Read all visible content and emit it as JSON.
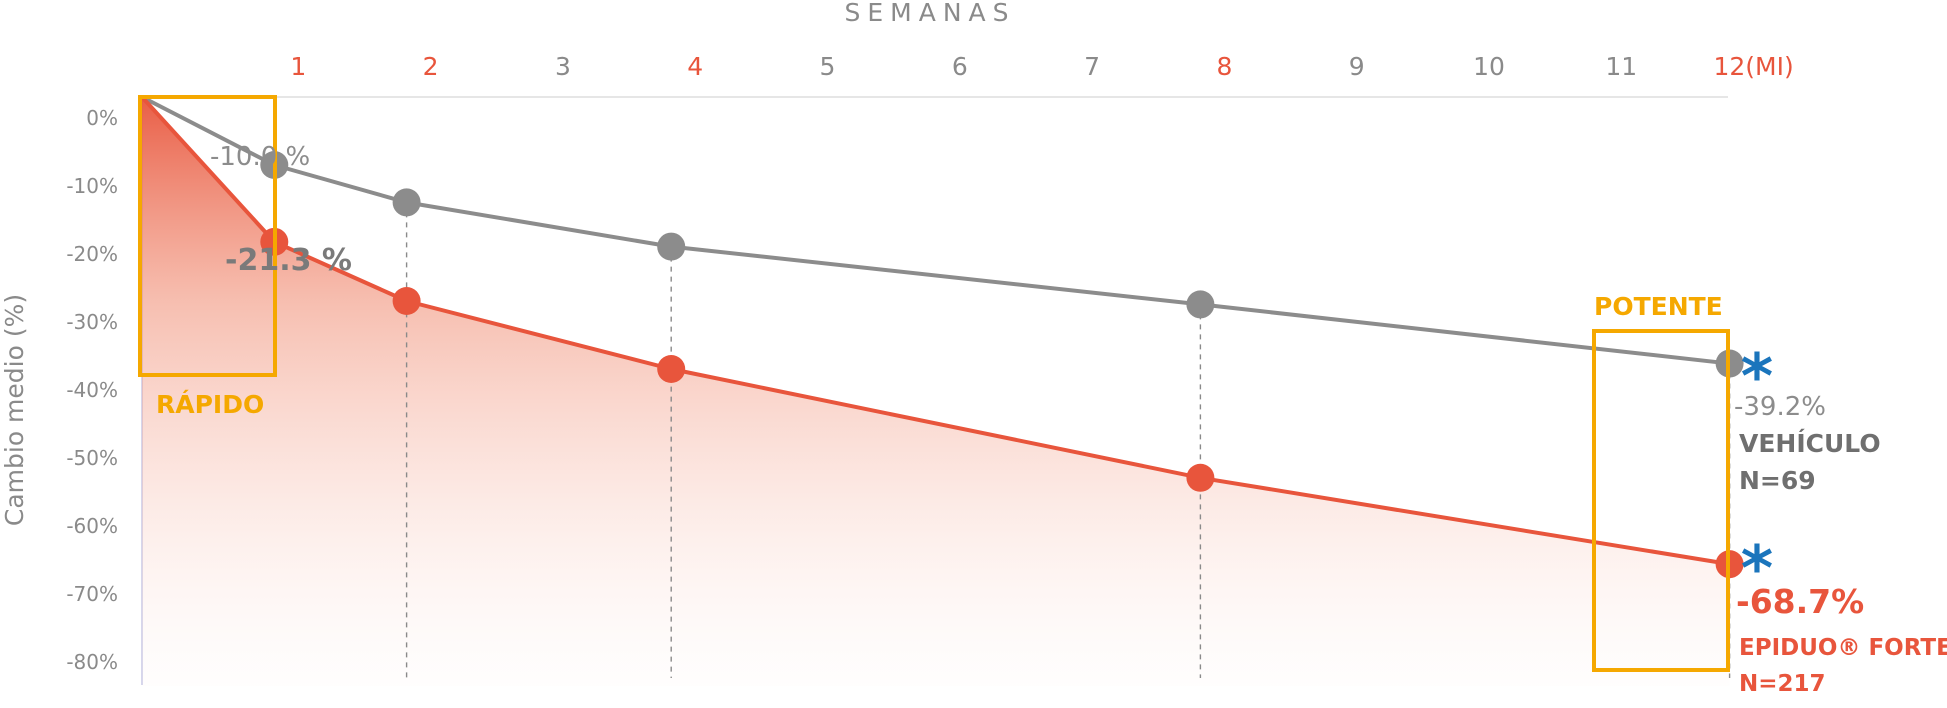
{
  "chart_data": {
    "type": "line",
    "title": "",
    "xlabel": "SEMANAS",
    "ylabel": "Cambio medio (%)",
    "x_ticks": [
      {
        "label": "1",
        "week": 1,
        "highlight": true
      },
      {
        "label": "2",
        "week": 2,
        "highlight": true
      },
      {
        "label": "3",
        "week": 3,
        "highlight": false
      },
      {
        "label": "4",
        "week": 4,
        "highlight": true
      },
      {
        "label": "5",
        "week": 5,
        "highlight": false
      },
      {
        "label": "6",
        "week": 6,
        "highlight": false
      },
      {
        "label": "7",
        "week": 7,
        "highlight": false
      },
      {
        "label": "8",
        "week": 8,
        "highlight": true
      },
      {
        "label": "9",
        "week": 9,
        "highlight": false
      },
      {
        "label": "10",
        "week": 10,
        "highlight": false
      },
      {
        "label": "11",
        "week": 11,
        "highlight": false
      },
      {
        "label": "12(MI)",
        "week": 12,
        "highlight": true
      }
    ],
    "y_ticks": [
      "0%",
      "-10%",
      "-20%",
      "-30%",
      "-40%",
      "-50%",
      "-60%",
      "-70%",
      "-80%"
    ],
    "ylim": [
      -80,
      0
    ],
    "xlim": [
      0,
      12
    ],
    "grid": false,
    "series": [
      {
        "key": "vehiculo",
        "legend_name": "VEHÍCULO",
        "legend_n": "N=69",
        "color": "#8c8c8c",
        "x": [
          0,
          1,
          2,
          4,
          8,
          12
        ],
        "y": [
          0,
          -10.0,
          -15.5,
          -22.0,
          -30.5,
          -39.2
        ],
        "end_label": "-39.2%"
      },
      {
        "key": "epiduo",
        "legend_name": "EPIDUO® FORTE",
        "legend_n": "N=217",
        "color": "#e8553c",
        "x": [
          0,
          1,
          2,
          4,
          8,
          12
        ],
        "y": [
          0,
          -21.3,
          -30.0,
          -40.0,
          -56.0,
          -68.7
        ],
        "end_label": "-68.7%"
      }
    ],
    "annotations": {
      "week1_vehiculo": "-10.0 %",
      "week1_epiduo": "-21.3 %",
      "rapido": "RÁPIDO",
      "potente": "POTENTE",
      "significance_symbol": "*"
    },
    "colors": {
      "accent_box": "#f5a800",
      "significance": "#1b75bc",
      "axis_text": "#8a8a8a",
      "highlight_tick": "#e8553c"
    }
  }
}
